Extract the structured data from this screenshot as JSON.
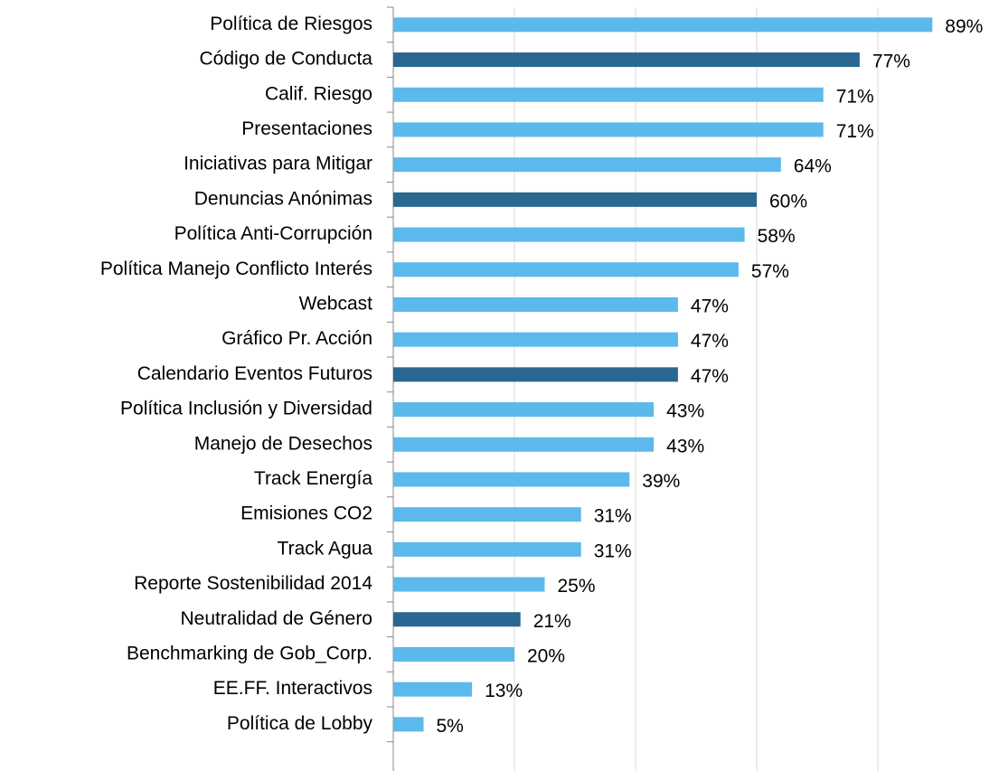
{
  "chart_data": {
    "type": "barh",
    "categories": [
      "Política de Riesgos",
      "Código de Conducta",
      "Calif. Riesgo",
      "Presentaciones",
      "Iniciativas para Mitigar",
      "Denuncias Anónimas",
      "Política Anti-Corrupción",
      "Política Manejo Conflicto Interés",
      "Webcast",
      "Gráfico Pr. Acción",
      "Calendario Eventos Futuros",
      "Política Inclusión y Diversidad",
      "Manejo de Desechos",
      "Track Energía",
      "Emisiones CO2",
      "Track Agua",
      "Reporte Sostenibilidad 2014",
      "Neutralidad de Género",
      "Benchmarking de Gob_Corp.",
      "EE.FF. Interactivos",
      "Política de Lobby"
    ],
    "values": [
      89,
      77,
      71,
      71,
      64,
      60,
      58,
      57,
      47,
      47,
      47,
      43,
      43,
      39,
      31,
      31,
      25,
      21,
      20,
      13,
      5
    ],
    "value_labels": [
      "89%",
      "77%",
      "71%",
      "71%",
      "64%",
      "60%",
      "58%",
      "57%",
      "47%",
      "47%",
      "47%",
      "43%",
      "43%",
      "39%",
      "31%",
      "31%",
      "25%",
      "21%",
      "20%",
      "13%",
      "5%"
    ],
    "colors": [
      "#5bb9ec",
      "#2a6891",
      "#5bb9ec",
      "#5bb9ec",
      "#5bb9ec",
      "#2a6891",
      "#5bb9ec",
      "#5bb9ec",
      "#5bb9ec",
      "#5bb9ec",
      "#2a6891",
      "#5bb9ec",
      "#5bb9ec",
      "#5bb9ec",
      "#5bb9ec",
      "#5bb9ec",
      "#5bb9ec",
      "#2a6891",
      "#5bb9ec",
      "#5bb9ec",
      "#5bb9ec"
    ],
    "xlim": [
      0,
      100
    ],
    "xticks": [
      0,
      20,
      40,
      60,
      80
    ],
    "grid": true
  }
}
